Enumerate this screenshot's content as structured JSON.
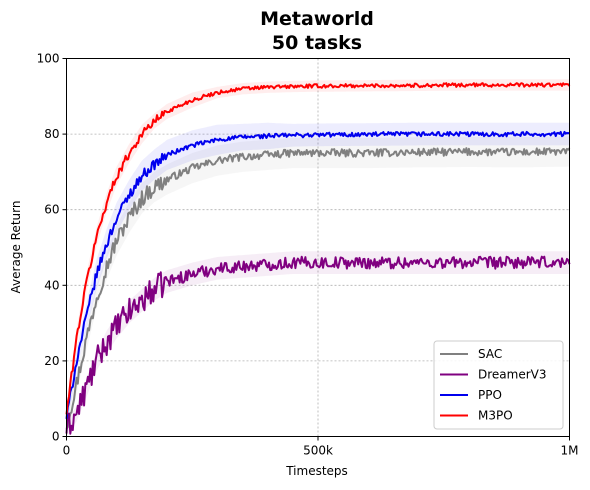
{
  "chart_data": {
    "type": "line",
    "title": [
      "Metaworld",
      "50 tasks"
    ],
    "xlabel": "Timesteps",
    "ylabel": "Average Return",
    "xlim": [
      0,
      1000000
    ],
    "ylim": [
      0,
      100
    ],
    "x_ticks": [
      0,
      500000,
      1000000
    ],
    "x_tick_labels": [
      "0",
      "500k",
      "1M"
    ],
    "y_ticks": [
      0,
      20,
      40,
      60,
      80,
      100
    ],
    "y_tick_labels": [
      "0",
      "20",
      "40",
      "60",
      "80",
      "100"
    ],
    "grid": true,
    "legend_position": "bottom-right",
    "x": [
      0,
      20000,
      40000,
      60000,
      80000,
      100000,
      125000,
      150000,
      175000,
      200000,
      250000,
      300000,
      350000,
      400000,
      450000,
      500000,
      600000,
      700000,
      800000,
      900000,
      1000000
    ],
    "series": [
      {
        "name": "SAC",
        "color": "#808080",
        "values": [
          3,
          14,
          26,
          37,
          45,
          52,
          58,
          63,
          66,
          68,
          71,
          73,
          74,
          74.5,
          75,
          75,
          75,
          75.2,
          75.3,
          75.2,
          75.4
        ],
        "band": [
          2.5,
          2.5,
          3,
          3,
          3.5,
          4,
          4,
          4,
          4,
          4,
          4,
          4,
          4,
          4,
          4,
          4,
          4,
          4,
          4,
          4,
          4
        ]
      },
      {
        "name": "DreamerV3",
        "color": "#800080",
        "values": [
          2,
          6,
          13,
          20,
          25,
          29,
          33,
          36,
          39,
          41,
          43,
          44.5,
          45,
          45.5,
          46,
          46,
          46,
          46,
          46,
          46,
          46
        ],
        "band": [
          2,
          2,
          2.5,
          2.5,
          3,
          3,
          3,
          3,
          3,
          3,
          3,
          3,
          3,
          3,
          3,
          3,
          3,
          3,
          3,
          3,
          3
        ]
      },
      {
        "name": "PPO",
        "color": "#0000ee",
        "values": [
          5,
          20,
          32,
          43,
          51,
          58,
          64,
          69,
          72,
          74.5,
          77,
          78.5,
          79.2,
          79.5,
          79.7,
          79.8,
          79.9,
          80,
          80,
          80,
          80
        ],
        "band": [
          2.5,
          3,
          3.5,
          4,
          4,
          4,
          4,
          4,
          4,
          4,
          4,
          4,
          3.5,
          3.5,
          3,
          3,
          3,
          3,
          3,
          3,
          3
        ]
      },
      {
        "name": "M3PO",
        "color": "#ff0000",
        "values": [
          6,
          26,
          41,
          53,
          62,
          69,
          75,
          80,
          83.5,
          86,
          89,
          91,
          92,
          92.4,
          92.6,
          92.7,
          92.8,
          92.9,
          93,
          93,
          93
        ],
        "band": [
          2,
          2.5,
          2.5,
          2.5,
          2.5,
          2.5,
          2.5,
          2.5,
          2,
          2,
          2,
          1.5,
          1.5,
          1.5,
          1.5,
          1.5,
          1.5,
          1.5,
          1.5,
          1.5,
          1.5
        ]
      }
    ]
  }
}
